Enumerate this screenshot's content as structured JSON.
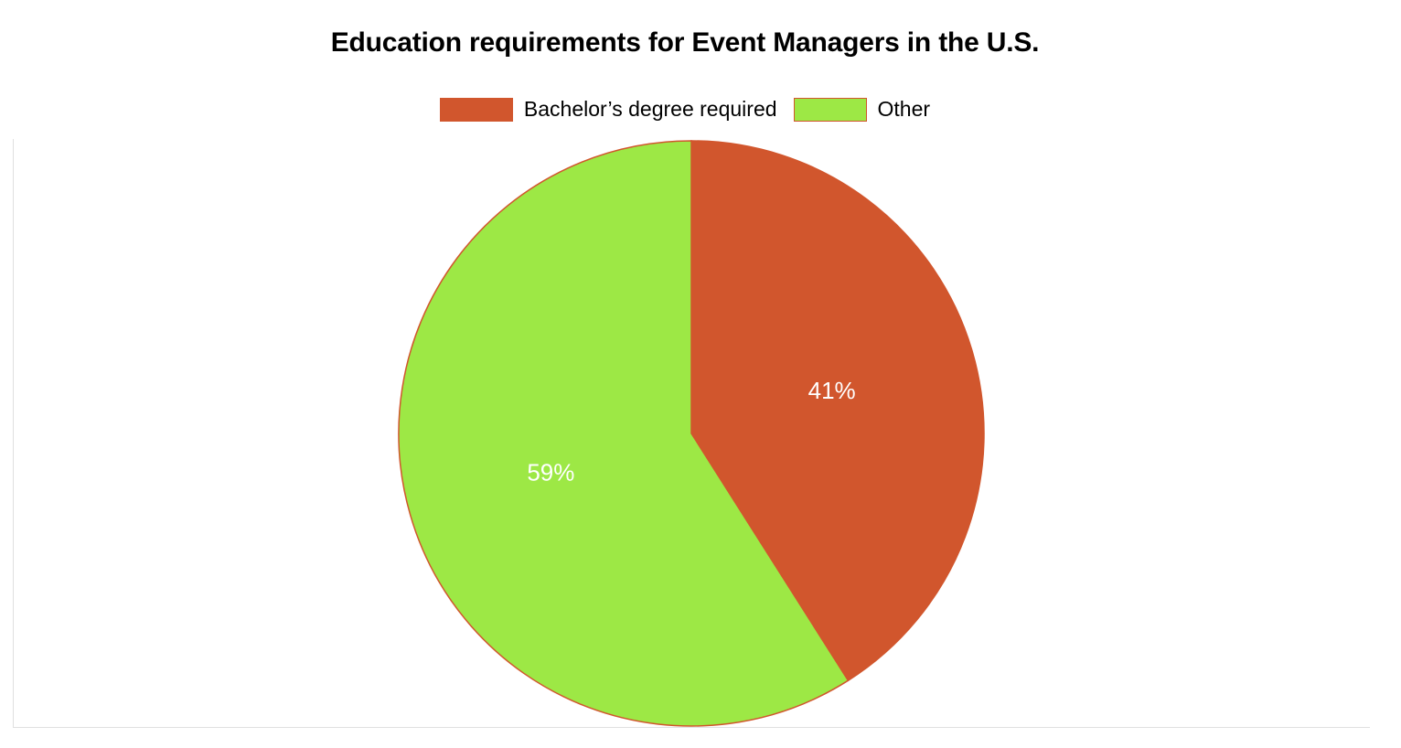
{
  "chart_data": {
    "type": "pie",
    "title": "Education requirements for Event Managers in the U.S.",
    "legend_position": "top",
    "slices": [
      {
        "label": "Bachelor’s degree required",
        "value": 41,
        "display": "41%",
        "color": "#d1562d"
      },
      {
        "label": "Other",
        "value": 59,
        "display": "59%",
        "color": "#9de845"
      }
    ],
    "slice_border_color": "#d1562d"
  }
}
